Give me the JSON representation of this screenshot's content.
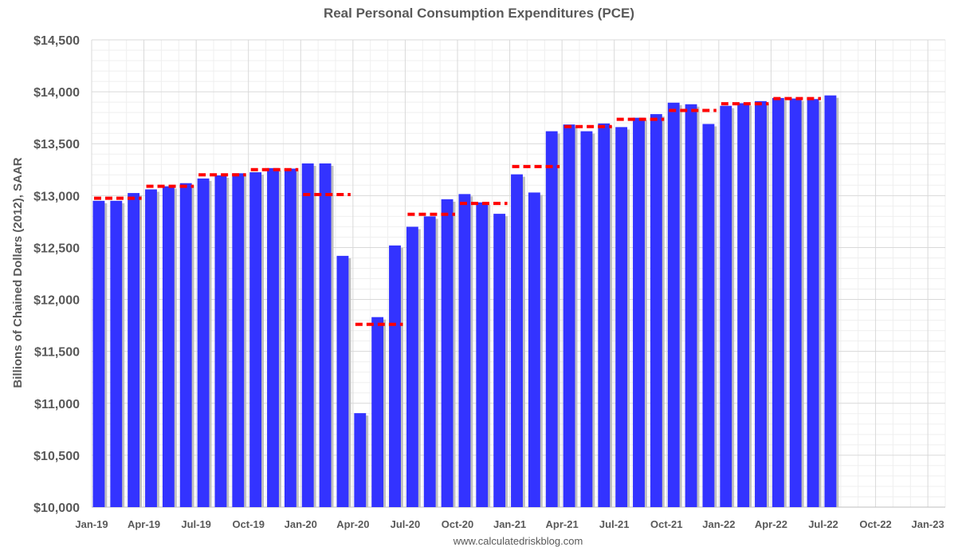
{
  "chart_data": {
    "type": "bar",
    "title": "Real Personal Consumption Expenditures (PCE)",
    "ylabel": "Billions of Chained Dollars (2012), SAAR",
    "xlabel": "",
    "ylim": [
      10000,
      14500
    ],
    "y_ticks": [
      "$10,000",
      "$10,500",
      "$11,000",
      "$11,500",
      "$12,000",
      "$12,500",
      "$13,000",
      "$13,500",
      "$14,000",
      "$14,500"
    ],
    "x_ticks": [
      "Jan-19",
      "Apr-19",
      "Jul-19",
      "Oct-19",
      "Jan-20",
      "Apr-20",
      "Jul-20",
      "Oct-20",
      "Jan-21",
      "Apr-21",
      "Jul-21",
      "Oct-21",
      "Jan-22",
      "Apr-22",
      "Jul-22",
      "Oct-22",
      "Jan-23"
    ],
    "total_months": 49,
    "grid": true,
    "legend": "none",
    "colors": {
      "bars": "#3333ff",
      "bar_shadow": "#c0c0c0",
      "quarterly_avg": "#ff0000",
      "grid": "#d9d9d9",
      "grid_minor": "#efefef"
    },
    "series": [
      {
        "type": "bar",
        "values": [
          12950,
          12950,
          13025,
          13060,
          13090,
          13120,
          13165,
          13195,
          13215,
          13225,
          13265,
          13260,
          13310,
          13310,
          12420,
          10905,
          11830,
          12520,
          12700,
          12800,
          12965,
          13015,
          12935,
          12825,
          13205,
          13030,
          13620,
          13685,
          13620,
          13695,
          13660,
          13750,
          13785,
          13895,
          13880,
          13690,
          13865,
          13890,
          13910,
          13940,
          13935,
          13930,
          13965
        ]
      },
      {
        "type": "quarterly-average",
        "values": [
          12975,
          13090,
          13200,
          13250,
          13010,
          11760,
          12820,
          12925,
          13280,
          13665,
          13735,
          13820,
          13885,
          13935
        ]
      }
    ],
    "source": "www.calculatedriskblog.com"
  }
}
